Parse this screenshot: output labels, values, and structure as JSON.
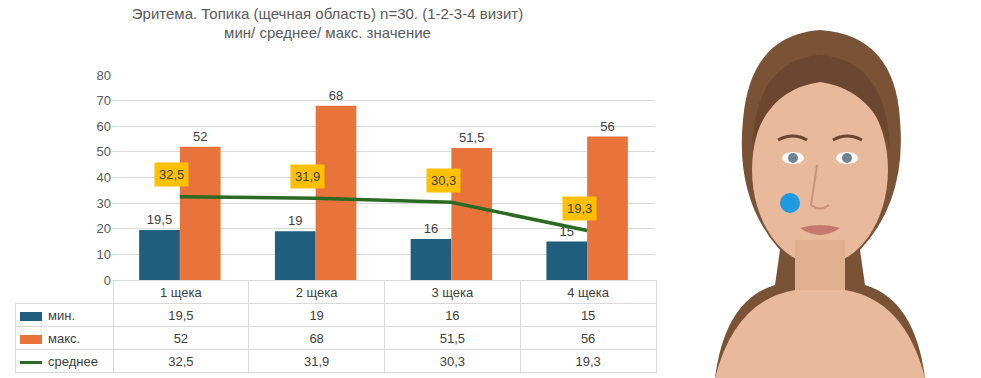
{
  "chart_data": {
    "type": "bar",
    "title": "Эритема. Топика (щечная область) n=30. (1-2-3-4 визит)",
    "subtitle": "мин/ среднее/ макс. значение",
    "categories": [
      "1 щека",
      "2 щека",
      "3 щека",
      "4 щека"
    ],
    "series": [
      {
        "name": "мин.",
        "type": "bar",
        "color": "#1f5f7d",
        "values": [
          19.5,
          19,
          16,
          15
        ],
        "value_labels": [
          "19,5",
          "19",
          "16",
          "15"
        ]
      },
      {
        "name": "макс.",
        "type": "bar",
        "color": "#e8743b",
        "values": [
          52,
          68,
          51.5,
          56
        ],
        "value_labels": [
          "52",
          "68",
          "51,5",
          "56"
        ]
      },
      {
        "name": "среднее",
        "type": "line",
        "color": "#2a6a22",
        "values": [
          32.5,
          31.9,
          30.3,
          19.3
        ],
        "value_labels": [
          "32,5",
          "31,9",
          "30,3",
          "19,3"
        ]
      }
    ],
    "ylim": [
      0,
      80
    ],
    "yticks": [
      0,
      10,
      20,
      30,
      40,
      50,
      60,
      70,
      80
    ],
    "grid": true,
    "data_labels": true
  }
}
